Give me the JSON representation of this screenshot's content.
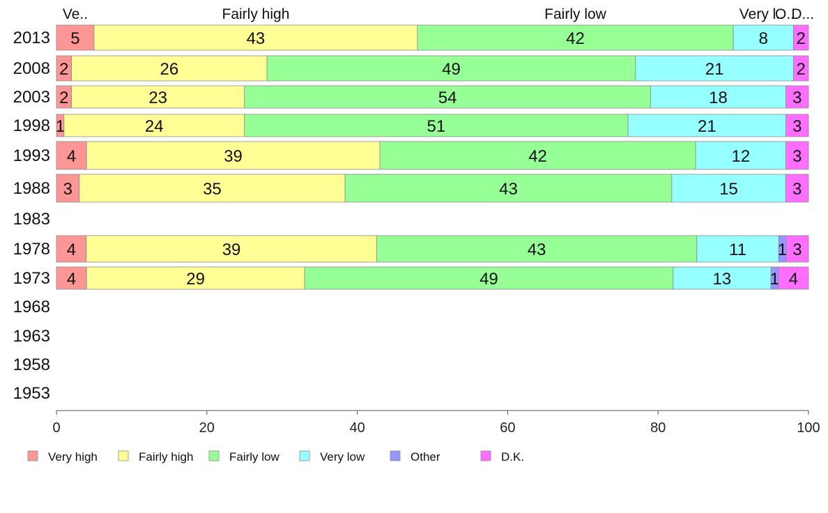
{
  "chart_data": {
    "type": "bar",
    "orientation": "horizontal",
    "stacked": true,
    "title": "",
    "xlabel": "",
    "ylabel": "",
    "xlim": [
      0,
      100
    ],
    "xticks": [
      0,
      20,
      40,
      60,
      80,
      100
    ],
    "categories": [
      "2013",
      "2008",
      "2003",
      "1998",
      "1993",
      "1988",
      "1983",
      "1978",
      "1973",
      "1968",
      "1963",
      "1958",
      "1953"
    ],
    "top_labels": [
      {
        "series": "Very high",
        "text": "Ve.."
      },
      {
        "series": "Fairly high",
        "text": "Fairly high"
      },
      {
        "series": "Fairly low",
        "text": "Fairly low"
      },
      {
        "series": "Very low",
        "text": "Very l.."
      },
      {
        "series": "Other",
        "text": "O.."
      },
      {
        "series": "D.K.",
        "text": "D..."
      }
    ],
    "series": [
      {
        "name": "Very high",
        "color": "#ff9696",
        "values": [
          5,
          2,
          2,
          1,
          4,
          3,
          null,
          4,
          4,
          null,
          null,
          null,
          null
        ]
      },
      {
        "name": "Fairly high",
        "color": "#ffff96",
        "values": [
          43,
          26,
          23,
          24,
          39,
          35,
          null,
          39,
          29,
          null,
          null,
          null,
          null
        ]
      },
      {
        "name": "Fairly low",
        "color": "#96ff96",
        "values": [
          42,
          49,
          54,
          51,
          42,
          43,
          null,
          43,
          49,
          null,
          null,
          null,
          null
        ]
      },
      {
        "name": "Very low",
        "color": "#96ffff",
        "values": [
          8,
          21,
          18,
          21,
          12,
          15,
          null,
          11,
          13,
          null,
          null,
          null,
          null
        ]
      },
      {
        "name": "Other",
        "color": "#9696ff",
        "values": [
          0,
          0,
          0,
          0,
          0,
          0,
          null,
          1,
          1,
          null,
          null,
          null,
          null
        ]
      },
      {
        "name": "D.K.",
        "color": "#ff6eff",
        "values": [
          2,
          2,
          3,
          3,
          3,
          3,
          null,
          3,
          4,
          null,
          null,
          null,
          null
        ]
      }
    ],
    "legend_position": "bottom-left",
    "grid": false
  }
}
